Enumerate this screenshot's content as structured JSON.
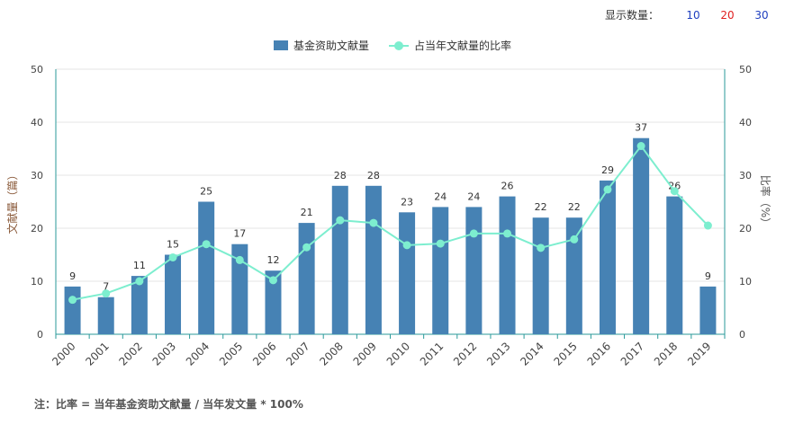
{
  "controls": {
    "display_label": "显示数量：",
    "options": [
      {
        "label": "10",
        "color": "#1f3fbf"
      },
      {
        "label": "20",
        "color": "#e02020"
      },
      {
        "label": "30",
        "color": "#1f3fbf"
      }
    ]
  },
  "colors": {
    "bar": "#4682b4",
    "line": "#7deecf",
    "axis": "#2a9a9a",
    "grid": "#e6e6e6"
  },
  "chart_data": {
    "type": "bar",
    "categories": [
      "2000",
      "2001",
      "2002",
      "2003",
      "2004",
      "2005",
      "2006",
      "2007",
      "2008",
      "2009",
      "2010",
      "2011",
      "2012",
      "2013",
      "2014",
      "2015",
      "2016",
      "2017",
      "2018",
      "2019"
    ],
    "series": [
      {
        "name": "基金资助文献量",
        "type": "bar",
        "axis": "left",
        "values": [
          9,
          7,
          11,
          15,
          25,
          17,
          12,
          21,
          28,
          28,
          23,
          24,
          24,
          26,
          22,
          22,
          29,
          37,
          26,
          9
        ]
      },
      {
        "name": "占当年文献量的比率",
        "type": "line",
        "axis": "right",
        "values": [
          6.5,
          7.7,
          10.0,
          14.5,
          17.0,
          14.0,
          10.2,
          16.4,
          21.5,
          21.0,
          16.8,
          17.1,
          19.0,
          19.0,
          16.3,
          17.9,
          27.3,
          35.5,
          27.0,
          20.5
        ]
      }
    ],
    "ylabel_left": "文献量（篇）",
    "ylabel_right": "比率（%）",
    "ylim_left": [
      0,
      50
    ],
    "ylim_right": [
      0,
      50
    ],
    "yticks": [
      0,
      10,
      20,
      30,
      40,
      50
    ],
    "grid": true,
    "legend_position": "top-center"
  },
  "footnote": "注：比率 = 当年基金资助文献量 / 当年发文量 * 100%"
}
